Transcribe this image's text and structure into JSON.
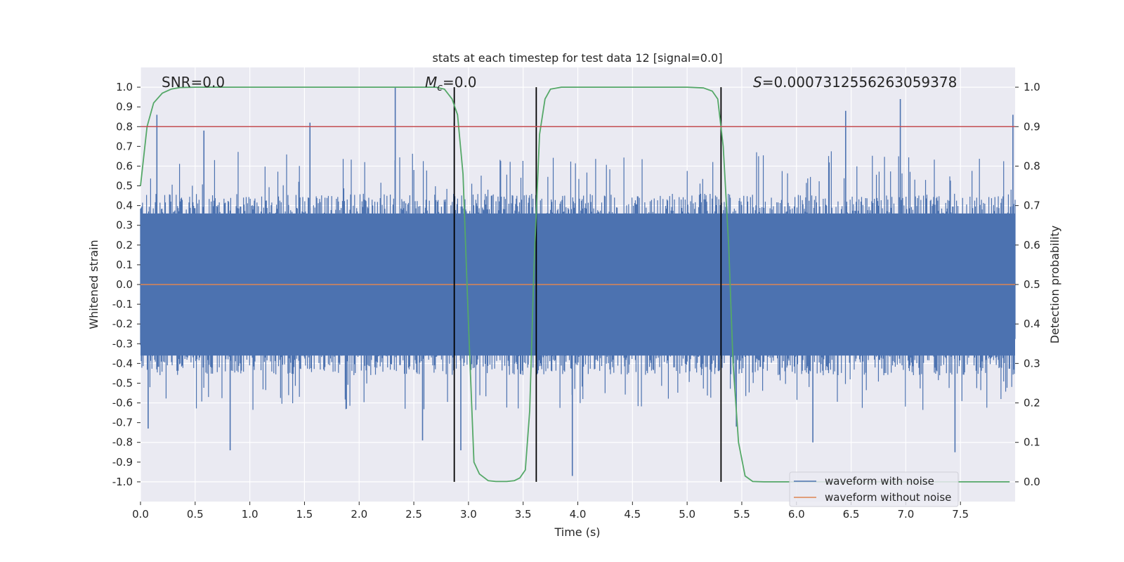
{
  "chart_data": {
    "type": "line",
    "title": "stats at each timestep for test data 12 [signal=0.0]",
    "xlabel": "Time (s)",
    "ylabel": "Whitened strain",
    "y2label": "Detection probability",
    "xlim": [
      0.0,
      8.0
    ],
    "ylim": [
      -1.1,
      1.1
    ],
    "y2lim": [
      -0.05,
      1.05
    ],
    "x_ticks": [
      "0.0",
      "0.5",
      "1.0",
      "1.5",
      "2.0",
      "2.5",
      "3.0",
      "3.5",
      "4.0",
      "4.5",
      "5.0",
      "5.5",
      "6.0",
      "6.5",
      "7.0",
      "7.5"
    ],
    "y_ticks": [
      "-1.0",
      "-0.9",
      "-0.8",
      "-0.7",
      "-0.6",
      "-0.5",
      "-0.4",
      "-0.3",
      "-0.2",
      "-0.1",
      "0.0",
      "0.1",
      "0.2",
      "0.3",
      "0.4",
      "0.5",
      "0.6",
      "0.7",
      "0.8",
      "0.9",
      "1.0"
    ],
    "y2_ticks": [
      "0.0",
      "0.1",
      "0.2",
      "0.3",
      "0.4",
      "0.5",
      "0.6",
      "0.7",
      "0.8",
      "0.9",
      "1.0"
    ],
    "grid": true,
    "legend_position": "lower-right",
    "annotations": {
      "snr": "SNR=0.0",
      "mc_symbol": "M",
      "mc_sub": "c",
      "mc_value": "=0.0",
      "s_symbol": "S",
      "s_value": "=0.0007312556263059378"
    },
    "series": [
      {
        "name": "waveform with noise",
        "color": "#4c72b0",
        "axis": "left",
        "noise_amplitude_typical": 0.4,
        "peaks": [
          {
            "x": 0.15,
            "y": 0.86
          },
          {
            "x": 0.58,
            "y": 0.78
          },
          {
            "x": 1.55,
            "y": 0.82
          },
          {
            "x": 2.33,
            "y": 1.0
          },
          {
            "x": 2.87,
            "y": 0.82
          },
          {
            "x": 6.45,
            "y": 0.88
          },
          {
            "x": 6.95,
            "y": 0.94
          },
          {
            "x": 7.98,
            "y": 0.86
          },
          {
            "x": 0.82,
            "y": -0.84
          },
          {
            "x": 2.58,
            "y": -0.79
          },
          {
            "x": 2.93,
            "y": -0.84
          },
          {
            "x": 3.95,
            "y": -0.97
          },
          {
            "x": 6.15,
            "y": -0.8
          },
          {
            "x": 7.45,
            "y": -0.85
          },
          {
            "x": 0.07,
            "y": -0.73
          },
          {
            "x": 5.45,
            "y": -0.72
          }
        ]
      },
      {
        "name": "waveform without noise",
        "color": "#dd8452",
        "axis": "left",
        "x": [
          0.0,
          8.0
        ],
        "y": [
          0.0,
          0.0
        ]
      },
      {
        "name": "",
        "color": "#55a868",
        "axis": "right",
        "x": [
          0.0,
          0.06,
          0.12,
          0.2,
          0.28,
          0.36,
          0.5,
          0.8,
          1.5,
          2.0,
          2.5,
          2.7,
          2.78,
          2.85,
          2.9,
          2.95,
          3.0,
          3.05,
          3.1,
          3.18,
          3.25,
          3.35,
          3.42,
          3.47,
          3.52,
          3.56,
          3.6,
          3.65,
          3.7,
          3.75,
          3.85,
          4.2,
          5.0,
          5.15,
          5.23,
          5.28,
          5.33,
          5.38,
          5.42,
          5.47,
          5.53,
          5.6,
          5.7,
          6.5,
          7.5,
          7.95
        ],
        "y": [
          0.75,
          0.9,
          0.96,
          0.985,
          0.995,
          0.999,
          1.0,
          1.0,
          1.0,
          1.0,
          1.0,
          1.0,
          0.995,
          0.97,
          0.93,
          0.78,
          0.4,
          0.05,
          0.02,
          0.003,
          0.001,
          0.001,
          0.003,
          0.01,
          0.03,
          0.18,
          0.55,
          0.88,
          0.97,
          0.995,
          1.0,
          1.0,
          1.0,
          0.998,
          0.99,
          0.97,
          0.85,
          0.6,
          0.3,
          0.1,
          0.015,
          0.001,
          0.0,
          0.0,
          0.0,
          0.0
        ]
      },
      {
        "name": "",
        "color": "#c44e52",
        "axis": "right",
        "x": [
          0.0,
          8.0
        ],
        "y": [
          0.9,
          0.9
        ]
      }
    ],
    "vertical_lines": [
      2.87,
      3.62,
      5.31
    ]
  }
}
